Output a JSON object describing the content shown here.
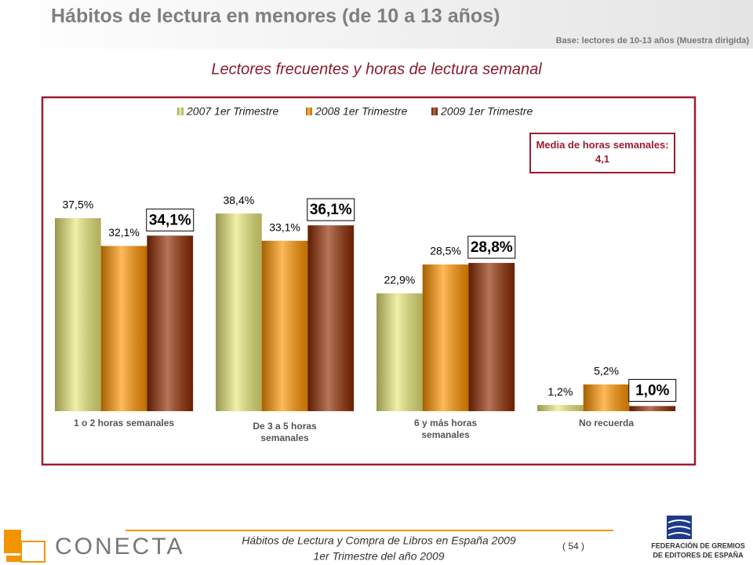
{
  "header": {
    "title": "Hábitos de lectura en menores (de 10 a 13 años)",
    "base": "Base: lectores de 10-13 años (Muestra dirigida)"
  },
  "chart_data": {
    "type": "bar",
    "title": "Lectores frecuentes y horas de lectura semanal",
    "annotation": "Media de horas semanales: 4,1",
    "categories": [
      "1 o 2 horas semanales",
      "De 3 a 5 horas semanales",
      "6 y más horas semanales",
      "No recuerda"
    ],
    "legend": "top",
    "series": [
      {
        "name": "2007 1er Trimestre",
        "color": "#e8e87a",
        "values": [
          37.5,
          38.4,
          22.9,
          1.2
        ],
        "value_labels": [
          "37,5%",
          "38,4%",
          "22,9%",
          "1,2%"
        ]
      },
      {
        "name": "2008 1er Trimestre",
        "color": "#ff9400",
        "values": [
          32.1,
          33.1,
          28.5,
          5.2
        ],
        "value_labels": [
          "32,1%",
          "33,1%",
          "28,5%",
          "5,2%"
        ]
      },
      {
        "name": "2009 1er Trimestre",
        "color": "#8f2a00",
        "values": [
          34.1,
          36.1,
          28.8,
          1.0
        ],
        "value_labels": [
          "34,1%",
          "36,1%",
          "28,8%",
          "1,0%"
        ]
      }
    ]
  },
  "footer": {
    "line1": "Hábitos de Lectura y Compra de Libros en España 2009",
    "line2": "1er Trimestre del año 2009",
    "page": "( 54 )",
    "logo_left": "CONECTA",
    "logo_right_1": "FEDERACIÓN DE GREMIOS",
    "logo_right_2": "DE EDITORES DE ESPAÑA"
  }
}
